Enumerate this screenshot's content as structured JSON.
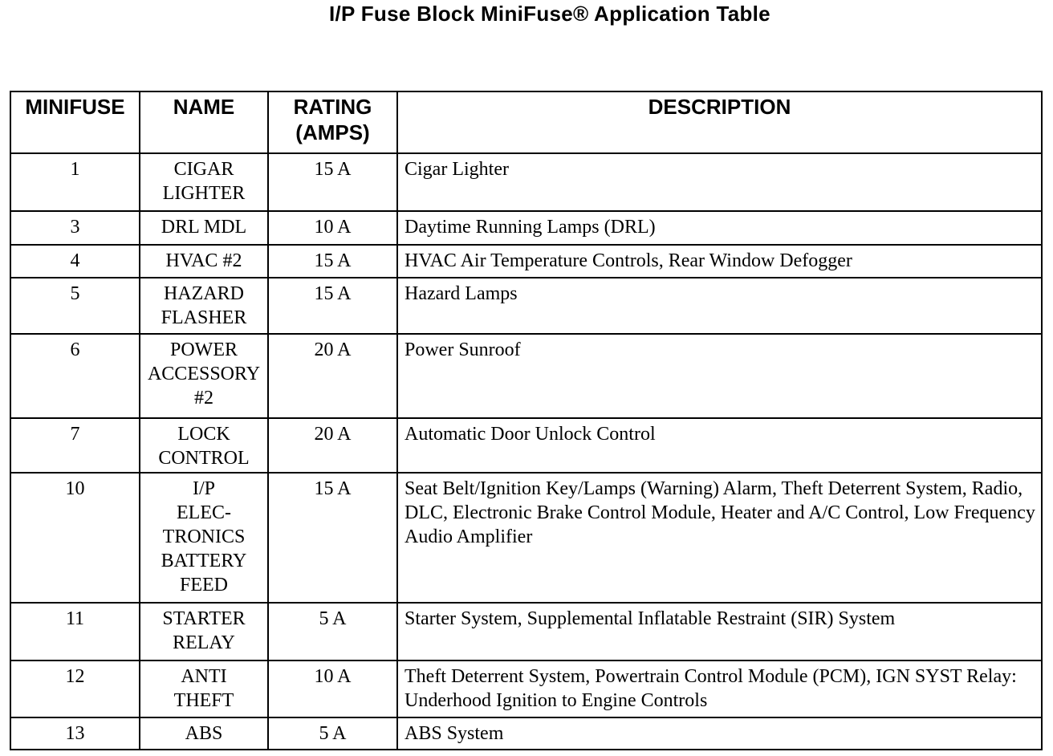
{
  "title": "I/P Fuse Block MiniFuse® Application Table",
  "headers": [
    "MINIFUSE",
    "NAME",
    "RATING\n(AMPS)",
    "DESCRIPTION"
  ],
  "rows": [
    {
      "minifuse": "1",
      "name": "CIGAR\nLIGHTER",
      "rating": "15 A",
      "description": "Cigar Lighter"
    },
    {
      "minifuse": "3",
      "name": "DRL MDL",
      "rating": "10 A",
      "description": "Daytime Running Lamps (DRL)"
    },
    {
      "minifuse": "4",
      "name": "HVAC #2",
      "rating": "15 A",
      "description": "HVAC Air Temperature Controls, Rear Window Defogger"
    },
    {
      "minifuse": "5",
      "name": "HAZARD\nFLASHER",
      "rating": "15 A",
      "description": "Hazard Lamps"
    },
    {
      "minifuse": "6",
      "name": "POWER\nACCESSORY\n#2",
      "rating": "20 A",
      "description": "Power Sunroof"
    },
    {
      "minifuse": "7",
      "name": "LOCK\nCONTROL",
      "rating": "20 A",
      "description": "Automatic Door Unlock Control"
    },
    {
      "minifuse": "10",
      "name": "I/P\nELEC-\nTRONICS\nBATTERY\nFEED",
      "rating": "15 A",
      "description": "Seat Belt/Ignition Key/Lamps (Warning) Alarm, Theft Deterrent System, Radio, DLC, Electronic Brake Control Module, Heater and A/C Control, Low Frequency Audio Amplifier"
    },
    {
      "minifuse": "11",
      "name": "STARTER\nRELAY",
      "rating": "5 A",
      "description": "Starter System, Supplemental Inflatable Restraint (SIR) System"
    },
    {
      "minifuse": "12",
      "name": "ANTI\nTHEFT",
      "rating": "10 A",
      "description": "Theft Deterrent System, Powertrain Control Module (PCM), IGN SYST Relay: Underhood Ignition to Engine Controls"
    },
    {
      "minifuse": "13",
      "name": "ABS",
      "rating": "5 A",
      "description": "ABS System"
    }
  ]
}
